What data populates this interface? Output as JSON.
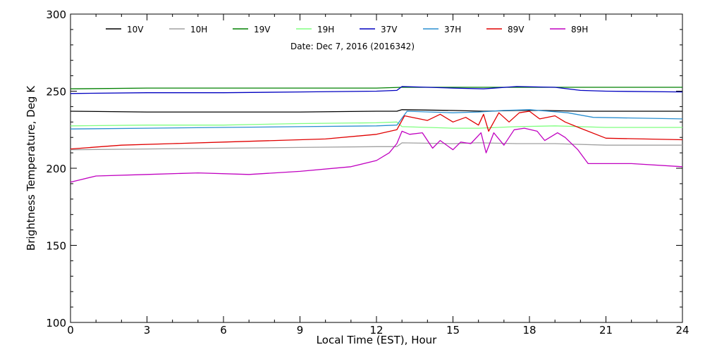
{
  "chart_data": {
    "type": "line",
    "date_label": "Date: Dec  7, 2016 (2016342)",
    "xlabel": "Local Time (EST), Hour",
    "ylabel": "Brightness Temperature, Deg K",
    "xlim": [
      0,
      24
    ],
    "ylim": [
      100,
      300
    ],
    "xticks": [
      "0",
      "3",
      "6",
      "9",
      "12",
      "15",
      "18",
      "21",
      "24"
    ],
    "yticks": [
      "100",
      "150",
      "200",
      "250",
      "300"
    ],
    "grid": false,
    "legend_position": "top",
    "series": [
      {
        "name": "10V",
        "color": "#000000",
        "x": [
          0,
          3,
          6,
          9,
          12,
          12.8,
          13,
          15,
          16.2,
          17.5,
          18.5,
          20,
          21,
          24
        ],
        "y": [
          237,
          236.5,
          236.5,
          236.5,
          237,
          237,
          238,
          237.5,
          237,
          237.5,
          237.5,
          237,
          237,
          237
        ]
      },
      {
        "name": "10H",
        "color": "#a0a0a0",
        "x": [
          0,
          3,
          6,
          9,
          12,
          12.8,
          13,
          15,
          16,
          17.5,
          19,
          21,
          24
        ],
        "y": [
          212,
          212.5,
          213,
          213.5,
          214,
          214,
          216.5,
          216,
          216.5,
          216,
          216,
          215,
          215
        ]
      },
      {
        "name": "19V",
        "color": "#008000",
        "x": [
          0,
          3,
          6,
          9,
          12,
          13,
          15,
          18,
          21,
          24
        ],
        "y": [
          251.5,
          252,
          252,
          252,
          252,
          252.5,
          252.5,
          252.5,
          252.5,
          252.5
        ]
      },
      {
        "name": "19H",
        "color": "#80ff80",
        "x": [
          0,
          3,
          6,
          9,
          12,
          12.8,
          13,
          15,
          16,
          17.5,
          19,
          21,
          24
        ],
        "y": [
          227.5,
          228,
          228,
          229,
          229.5,
          230,
          227,
          226,
          226,
          227,
          227.5,
          226.5,
          226.5
        ]
      },
      {
        "name": "37V",
        "color": "#0000c0",
        "x": [
          0,
          3,
          6,
          9,
          12,
          12.8,
          13,
          15,
          16.2,
          17.5,
          19,
          20,
          21,
          24
        ],
        "y": [
          248.5,
          249,
          249,
          249.5,
          250,
          250.5,
          253,
          252,
          251.5,
          253,
          252.5,
          250.5,
          250,
          249.5
        ]
      },
      {
        "name": "37H",
        "color": "#2a8fd0",
        "x": [
          0,
          3,
          6,
          9,
          12,
          12.8,
          13.2,
          15,
          16,
          17,
          18,
          19.5,
          20.5,
          24
        ],
        "y": [
          225.5,
          226,
          226.5,
          227,
          227.5,
          228,
          237,
          236,
          236.5,
          237.5,
          238,
          236,
          233,
          232
        ]
      },
      {
        "name": "89V",
        "color": "#e00000",
        "x": [
          0,
          2,
          4,
          6,
          8,
          10,
          12,
          12.8,
          13.1,
          14,
          14.5,
          15,
          15.5,
          16,
          16.2,
          16.4,
          16.8,
          17.2,
          17.6,
          18,
          18.4,
          19,
          19.4,
          20,
          21,
          24
        ],
        "y": [
          212.5,
          215,
          216,
          217,
          218,
          219,
          222,
          225,
          234,
          231,
          235,
          230,
          233,
          228,
          235,
          224,
          236,
          230,
          236,
          237,
          232,
          234,
          230,
          226,
          219.5,
          218.5
        ]
      },
      {
        "name": "89H",
        "color": "#c000c0",
        "x": [
          0,
          1,
          3,
          5,
          7,
          8,
          9,
          11,
          12,
          12.5,
          12.8,
          13,
          13.3,
          13.8,
          14.2,
          14.5,
          15,
          15.3,
          15.7,
          16.1,
          16.3,
          16.6,
          17,
          17.4,
          17.8,
          18.3,
          18.6,
          19.1,
          19.4,
          19.9,
          20.3,
          21,
          22,
          24
        ],
        "y": [
          191,
          195,
          196,
          197,
          196,
          197,
          198,
          201,
          205,
          210,
          216,
          224,
          222,
          223,
          213,
          218,
          212,
          217,
          216,
          223,
          210,
          223,
          215,
          225,
          226,
          224,
          218,
          223,
          220,
          212,
          203,
          203,
          203,
          201
        ]
      }
    ]
  }
}
